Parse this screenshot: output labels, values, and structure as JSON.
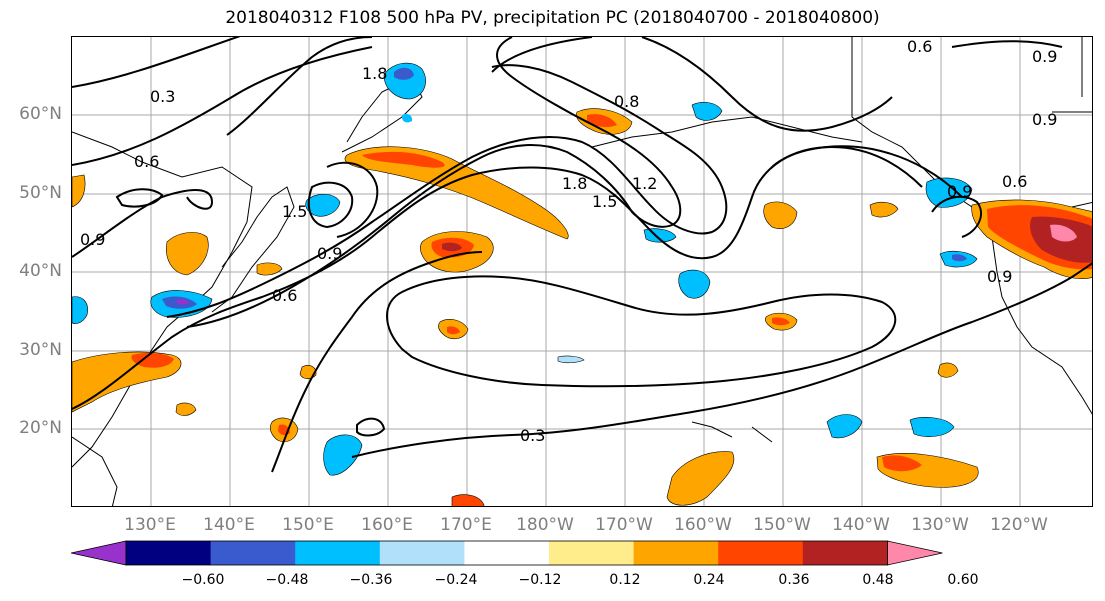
{
  "title": "2018040312 F108 500 hPa PV, precipitation PC (2018040700 - 2018040800)",
  "lat_labels": [
    "60°N",
    "50°N",
    "40°N",
    "30°N",
    "20°N"
  ],
  "lon_labels": [
    "130°E",
    "140°E",
    "150°E",
    "160°E",
    "170°E",
    "180°W",
    "170°W",
    "160°W",
    "150°W",
    "140°W",
    "130°W",
    "120°W"
  ],
  "contour_labels": [
    "0.3",
    "0.6",
    "0.9",
    "1.2",
    "1.5",
    "1.8",
    "0.3",
    "0.6",
    "0.9",
    "1.8",
    "1.5",
    "0.6",
    "0.9",
    "0.9",
    "0.8",
    "0.6",
    "0.9",
    "0.9"
  ],
  "colorbar": {
    "ticks": [
      "−0.60",
      "−0.48",
      "−0.36",
      "−0.24",
      "−0.12",
      "0.12",
      "0.24",
      "0.36",
      "0.48",
      "0.60"
    ],
    "colors": [
      "#9932cc",
      "#000080",
      "#3a5bcd",
      "#00bfff",
      "#b0e0fa",
      "#ffffff",
      "#ffec8b",
      "#ffa500",
      "#ff4500",
      "#b22222",
      "#ff88aa"
    ]
  }
}
